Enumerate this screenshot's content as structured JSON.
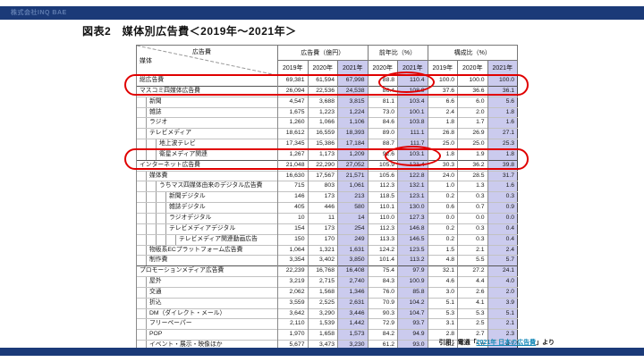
{
  "colors": {
    "bar_navy": "#1b3a78",
    "logo_blue": "#5f7cb0",
    "highlight_column": "#cbcbee",
    "annotation_red": "#e00000",
    "link_teal": "#1789b8"
  },
  "header_bar": {
    "logo_text": "株式会社INQ BAE"
  },
  "title": "図表2　媒体別広告費＜2019年～2021年＞",
  "table": {
    "corner": {
      "top": "広告費",
      "bottom": "媒体"
    },
    "groups": [
      {
        "label": "広告費（億円）",
        "span": 3
      },
      {
        "label": "前年比（%）",
        "span": 2
      },
      {
        "label": "構成比（%）",
        "span": 3
      }
    ],
    "years": [
      {
        "label": "2019年",
        "hl": false
      },
      {
        "label": "2020年",
        "hl": false
      },
      {
        "label": "2021年",
        "hl": true
      },
      {
        "label": "2020年",
        "hl": false
      },
      {
        "label": "2021年",
        "hl": true
      },
      {
        "label": "2019年",
        "hl": false
      },
      {
        "label": "2020年",
        "hl": false
      },
      {
        "label": "2021年",
        "hl": true
      }
    ],
    "rows": [
      {
        "label": "総広告費",
        "level": 0,
        "values": [
          "69,381",
          "61,594",
          "67,998",
          "88.8",
          "110.4",
          "100.0",
          "100.0",
          "100.0"
        ]
      },
      {
        "label": "マスコミ四媒体広告費",
        "level": 0,
        "values": [
          "26,094",
          "22,536",
          "24,538",
          "86.4",
          "108.9",
          "37.6",
          "36.6",
          "36.1"
        ]
      },
      {
        "label": "新聞",
        "level": 1,
        "values": [
          "4,547",
          "3,688",
          "3,815",
          "81.1",
          "103.4",
          "6.6",
          "6.0",
          "5.6"
        ]
      },
      {
        "label": "雑誌",
        "level": 1,
        "values": [
          "1,675",
          "1,223",
          "1,224",
          "73.0",
          "100.1",
          "2.4",
          "2.0",
          "1.8"
        ]
      },
      {
        "label": "ラジオ",
        "level": 1,
        "values": [
          "1,260",
          "1,066",
          "1,106",
          "84.6",
          "103.8",
          "1.8",
          "1.7",
          "1.6"
        ]
      },
      {
        "label": "テレビメディア",
        "level": 1,
        "values": [
          "18,612",
          "16,559",
          "18,393",
          "89.0",
          "111.1",
          "26.8",
          "26.9",
          "27.1"
        ]
      },
      {
        "label": "地上波テレビ",
        "level": 2,
        "values": [
          "17,345",
          "15,386",
          "17,184",
          "88.7",
          "111.7",
          "25.0",
          "25.0",
          "25.3"
        ]
      },
      {
        "label": "衛星メディア関連",
        "level": 2,
        "values": [
          "1,267",
          "1,173",
          "1,209",
          "92.6",
          "103.1",
          "1.8",
          "1.9",
          "1.8"
        ]
      },
      {
        "label": "インターネット広告費",
        "level": 0,
        "values": [
          "21,048",
          "22,290",
          "27,052",
          "105.9",
          "121.4",
          "30.3",
          "36.2",
          "39.8"
        ]
      },
      {
        "label": "媒体費",
        "level": 1,
        "values": [
          "16,630",
          "17,567",
          "21,571",
          "105.6",
          "122.8",
          "24.0",
          "28.5",
          "31.7"
        ]
      },
      {
        "label": "うちマス四媒体由来のデジタル広告費",
        "level": 2,
        "values": [
          "715",
          "803",
          "1,061",
          "112.3",
          "132.1",
          "1.0",
          "1.3",
          "1.6"
        ]
      },
      {
        "label": "新聞デジタル",
        "level": 3,
        "values": [
          "146",
          "173",
          "213",
          "118.5",
          "123.1",
          "0.2",
          "0.3",
          "0.3"
        ]
      },
      {
        "label": "雑誌デジタル",
        "level": 3,
        "values": [
          "405",
          "446",
          "580",
          "110.1",
          "130.0",
          "0.6",
          "0.7",
          "0.9"
        ]
      },
      {
        "label": "ラジオデジタル",
        "level": 3,
        "values": [
          "10",
          "11",
          "14",
          "110.0",
          "127.3",
          "0.0",
          "0.0",
          "0.0"
        ]
      },
      {
        "label": "テレビメディアデジタル",
        "level": 3,
        "values": [
          "154",
          "173",
          "254",
          "112.3",
          "146.8",
          "0.2",
          "0.3",
          "0.4"
        ]
      },
      {
        "label": "テレビメディア関連動画広告",
        "level": 4,
        "values": [
          "150",
          "170",
          "249",
          "113.3",
          "146.5",
          "0.2",
          "0.3",
          "0.4"
        ]
      },
      {
        "label": "物販系ECプラットフォーム広告費",
        "level": 1,
        "values": [
          "1,064",
          "1,321",
          "1,631",
          "124.2",
          "123.5",
          "1.5",
          "2.1",
          "2.4"
        ]
      },
      {
        "label": "制作費",
        "level": 1,
        "values": [
          "3,354",
          "3,402",
          "3,850",
          "101.4",
          "113.2",
          "4.8",
          "5.5",
          "5.7"
        ]
      },
      {
        "label": "プロモーションメディア広告費",
        "level": 0,
        "values": [
          "22,239",
          "16,768",
          "16,408",
          "75.4",
          "97.9",
          "32.1",
          "27.2",
          "24.1"
        ]
      },
      {
        "label": "屋外",
        "level": 1,
        "values": [
          "3,219",
          "2,715",
          "2,740",
          "84.3",
          "100.9",
          "4.6",
          "4.4",
          "4.0"
        ]
      },
      {
        "label": "交通",
        "level": 1,
        "values": [
          "2,062",
          "1,568",
          "1,346",
          "76.0",
          "85.8",
          "3.0",
          "2.6",
          "2.0"
        ]
      },
      {
        "label": "折込",
        "level": 1,
        "values": [
          "3,559",
          "2,525",
          "2,631",
          "70.9",
          "104.2",
          "5.1",
          "4.1",
          "3.9"
        ]
      },
      {
        "label": "DM（ダイレクト・メール）",
        "level": 1,
        "values": [
          "3,642",
          "3,290",
          "3,446",
          "90.3",
          "104.7",
          "5.3",
          "5.3",
          "5.1"
        ]
      },
      {
        "label": "フリーペーパー",
        "level": 1,
        "values": [
          "2,110",
          "1,539",
          "1,442",
          "72.9",
          "93.7",
          "3.1",
          "2.5",
          "2.1"
        ]
      },
      {
        "label": "POP",
        "level": 1,
        "values": [
          "1,970",
          "1,658",
          "1,573",
          "84.2",
          "94.9",
          "2.8",
          "2.7",
          "2.3"
        ]
      },
      {
        "label": "イベント・展示・映像ほか",
        "level": 1,
        "values": [
          "5,677",
          "3,473",
          "3,230",
          "61.2",
          "93.0",
          "8.2",
          "5.6",
          "4.7"
        ]
      }
    ]
  },
  "annotations": {
    "row_highlights": [
      "総広告費",
      "インターネット広告費"
    ],
    "value_highlights": [
      "110.4",
      "121.4"
    ]
  },
  "citation": {
    "prefix": "引用：電通「",
    "link_text": "2021年 日本の広告費",
    "suffix": "」より"
  }
}
